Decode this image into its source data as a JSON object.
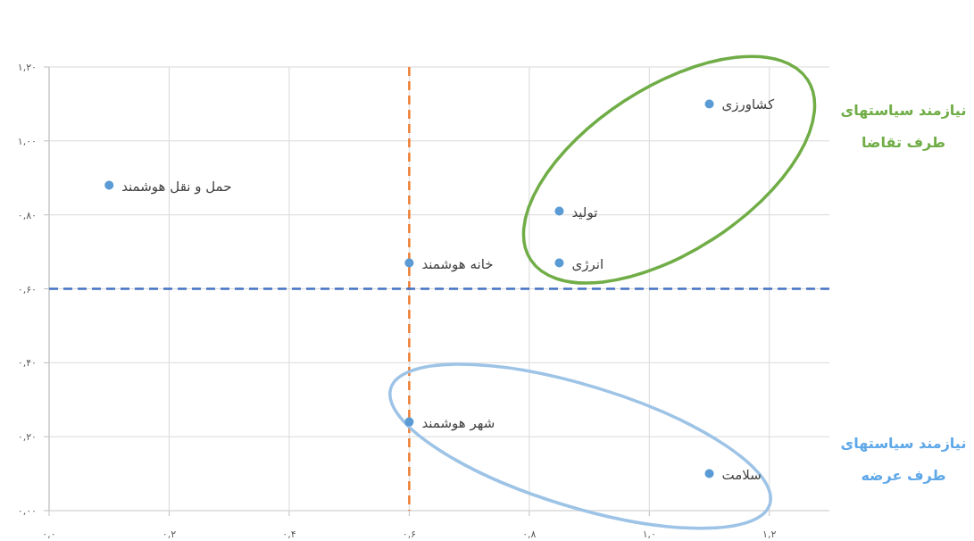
{
  "chart_data": {
    "type": "scatter",
    "x": [
      0.1,
      1.1,
      0.85,
      0.85,
      0.6,
      0.6,
      1.1
    ],
    "series": [
      {
        "color": "#5b9bd5",
        "values": [
          0.88,
          1.1,
          0.81,
          0.67,
          0.67,
          0.24,
          0.1
        ]
      }
    ],
    "marker": "circle",
    "xlim": [
      0,
      1.3
    ],
    "ylim": [
      0,
      1.2
    ],
    "xticks": [
      {
        "value": 0,
        "label": "۰,۰"
      },
      {
        "value": 0.2,
        "label": "۰,۲"
      },
      {
        "value": 0.4,
        "label": "۰,۴"
      },
      {
        "value": 0.6,
        "label": "۰,۶"
      },
      {
        "value": 0.8,
        "label": "۰,۸"
      },
      {
        "value": 1.0,
        "label": "۱,۰"
      },
      {
        "value": 1.2,
        "label": "۱,۲"
      }
    ],
    "yticks": [
      {
        "value": 0,
        "label": "۰,۰۰"
      },
      {
        "value": 0.2,
        "label": "۰,۲۰"
      },
      {
        "value": 0.4,
        "label": "۰,۴۰"
      },
      {
        "value": 0.6,
        "label": "۰,۶۰"
      },
      {
        "value": 0.8,
        "label": "۰,۸۰"
      },
      {
        "value": 1.0,
        "label": "۱,۰۰"
      },
      {
        "value": 1.2,
        "label": "۱,۲۰"
      }
    ],
    "grid": true,
    "ref_lines": [
      {
        "axis": "x",
        "value": 0.6,
        "color": "#ed7d31",
        "line_style": "dashed"
      },
      {
        "axis": "y",
        "value": 0.6,
        "color": "#4472c4",
        "line_style": "dashed"
      }
    ],
    "annotations": [
      {
        "text": "حمل و نقل هوشمند",
        "x": 0.1,
        "y": 0.88
      },
      {
        "text": "کشاورزی",
        "x": 1.1,
        "y": 1.1
      },
      {
        "text": "تولید",
        "x": 0.85,
        "y": 0.81
      },
      {
        "text": "انرژی",
        "x": 0.85,
        "y": 0.67
      },
      {
        "text": "خانه هوشمند",
        "x": 0.6,
        "y": 0.67
      },
      {
        "text": "شهر هوشمند",
        "x": 0.6,
        "y": 0.24
      },
      {
        "text": "سلامت",
        "x": 1.1,
        "y": 0.1
      },
      "نیازمند سیاستهای طرف تقاضا",
      "نیازمند سیاستهای طرف عرضه"
    ]
  }
}
